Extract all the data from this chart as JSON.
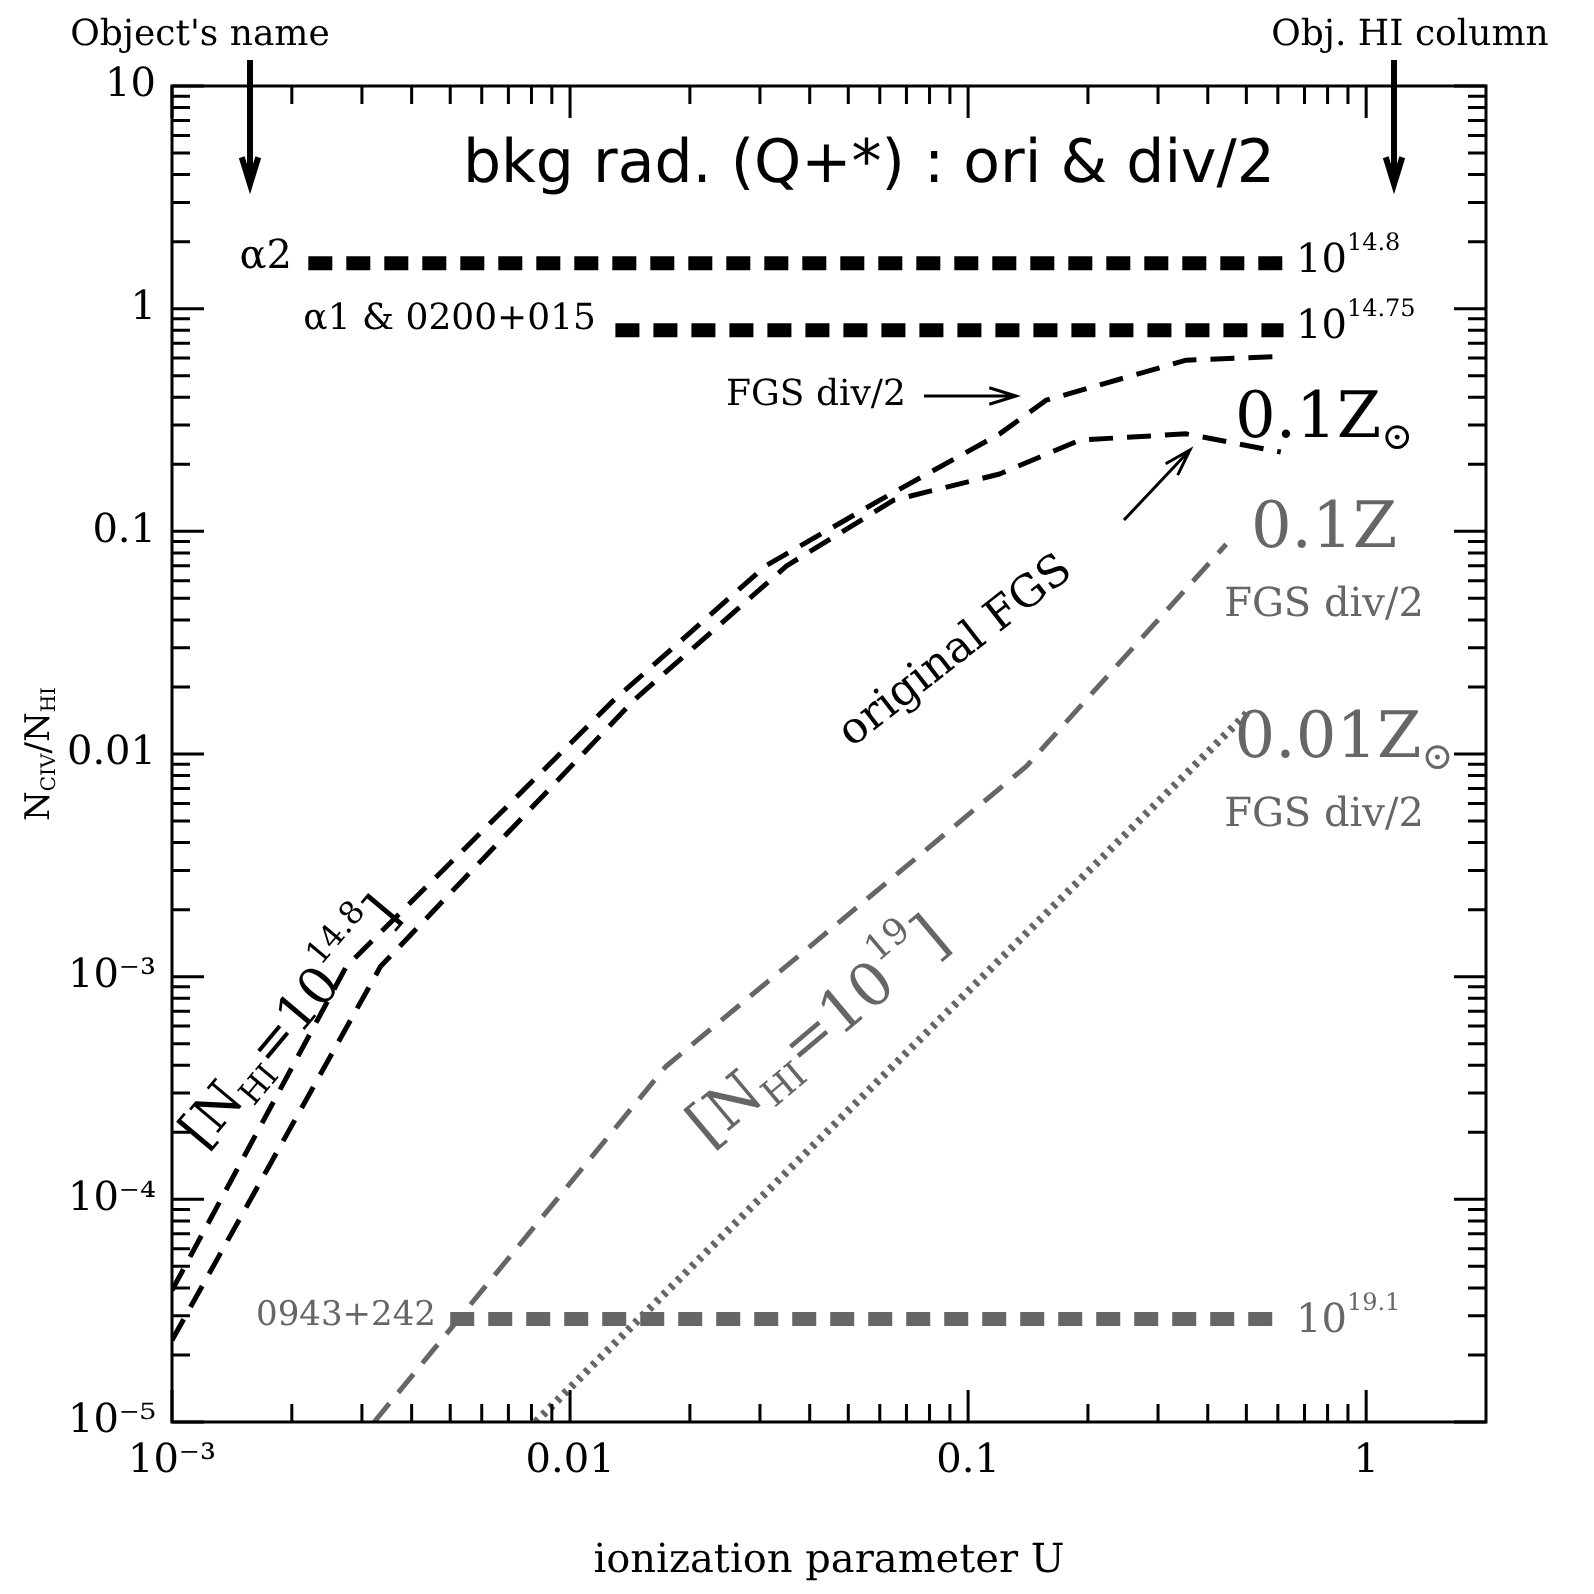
{
  "chart_data": {
    "type": "line",
    "title": "bkg rad. (Q+*) : ori & div/2",
    "xlabel": "ionization parameter U",
    "ylabel": "N$_{CIV}$/N$_{HI}$",
    "log": "xy",
    "grid": false,
    "legend": false,
    "marker": "none",
    "xlim": [
      0.001,
      2
    ],
    "ylim": [
      1e-05,
      10
    ],
    "xticks": [
      {
        "value": 0.001,
        "label": "10⁻³"
      },
      {
        "value": 0.002,
        "label": null
      },
      {
        "value": 0.003,
        "label": null
      },
      {
        "value": 0.004,
        "label": null
      },
      {
        "value": 0.005,
        "label": null
      },
      {
        "value": 0.006,
        "label": null
      },
      {
        "value": 0.007,
        "label": null
      },
      {
        "value": 0.008,
        "label": null
      },
      {
        "value": 0.009,
        "label": null
      },
      0.01,
      {
        "value": 0.02,
        "label": null
      },
      {
        "value": 0.03,
        "label": null
      },
      {
        "value": 0.04,
        "label": null
      },
      {
        "value": 0.05,
        "label": null
      },
      {
        "value": 0.06,
        "label": null
      },
      {
        "value": 0.07,
        "label": null
      },
      {
        "value": 0.08,
        "label": null
      },
      {
        "value": 0.09,
        "label": null
      },
      0.1,
      {
        "value": 0.2,
        "label": null
      },
      {
        "value": 0.3,
        "label": null
      },
      {
        "value": 0.4,
        "label": null
      },
      {
        "value": 0.5,
        "label": null
      },
      {
        "value": 0.6,
        "label": null
      },
      {
        "value": 0.7,
        "label": null
      },
      {
        "value": 0.8,
        "label": null
      },
      {
        "value": 0.9,
        "label": null
      },
      1
    ],
    "yticks": [
      {
        "value": 1e-05,
        "label": "10⁻⁵"
      },
      {
        "value": 2e-05,
        "label": null
      },
      {
        "value": 3e-05,
        "label": null
      },
      {
        "value": 4e-05,
        "label": null
      },
      {
        "value": 5e-05,
        "label": null
      },
      {
        "value": 6e-05,
        "label": null
      },
      {
        "value": 7e-05,
        "label": null
      },
      {
        "value": 8e-05,
        "label": null
      },
      {
        "value": 9e-05,
        "label": null
      },
      {
        "value": 0.0001,
        "label": "10⁻⁴"
      },
      {
        "value": 0.0002,
        "label": null
      },
      {
        "value": 0.0003,
        "label": null
      },
      {
        "value": 0.0004,
        "label": null
      },
      {
        "value": 0.0005,
        "label": null
      },
      {
        "value": 0.0006,
        "label": null
      },
      {
        "value": 0.0007,
        "label": null
      },
      {
        "value": 0.0008,
        "label": null
      },
      {
        "value": 0.0009,
        "label": null
      },
      {
        "value": 0.001,
        "label": "10⁻³"
      },
      {
        "value": 0.002,
        "label": null
      },
      {
        "value": 0.003,
        "label": null
      },
      {
        "value": 0.004,
        "label": null
      },
      {
        "value": 0.005,
        "label": null
      },
      {
        "value": 0.006,
        "label": null
      },
      {
        "value": 0.007,
        "label": null
      },
      {
        "value": 0.008,
        "label": null
      },
      {
        "value": 0.009,
        "label": null
      },
      0.01,
      {
        "value": 0.02,
        "label": null
      },
      {
        "value": 0.03,
        "label": null
      },
      {
        "value": 0.04,
        "label": null
      },
      {
        "value": 0.05,
        "label": null
      },
      {
        "value": 0.06,
        "label": null
      },
      {
        "value": 0.07,
        "label": null
      },
      {
        "value": 0.08,
        "label": null
      },
      {
        "value": 0.09,
        "label": null
      },
      0.1,
      {
        "value": 0.2,
        "label": null
      },
      {
        "value": 0.3,
        "label": null
      },
      {
        "value": 0.4,
        "label": null
      },
      {
        "value": 0.5,
        "label": null
      },
      {
        "value": 0.6,
        "label": null
      },
      {
        "value": 0.7,
        "label": null
      },
      {
        "value": 0.8,
        "label": null
      },
      {
        "value": 0.9,
        "label": null
      },
      1,
      {
        "value": 2,
        "label": null
      },
      {
        "value": 3,
        "label": null
      },
      {
        "value": 4,
        "label": null
      },
      {
        "value": 5,
        "label": null
      },
      {
        "value": 6,
        "label": null
      },
      {
        "value": 7,
        "label": null
      },
      {
        "value": 8,
        "label": null
      },
      {
        "value": 9,
        "label": null
      },
      10
    ],
    "series": [
      {
        "color": "#000000",
        "line_style": "dashed",
        "x": [
          0.0022,
          0.62
        ],
        "values": [
          1.6,
          1.6
        ]
      },
      {
        "color": "#000000",
        "line_style": "dashed",
        "x": [
          0.013,
          0.62
        ],
        "values": [
          0.8,
          0.8
        ]
      },
      {
        "color": "#666666",
        "line_style": "dashed",
        "x": [
          0.005,
          0.62
        ],
        "values": [
          2.9e-05,
          2.9e-05
        ]
      },
      {
        "color": "#000000",
        "line_style": "dashed",
        "x": [
          0.001,
          0.00274,
          0.0129,
          0.031,
          0.06,
          0.12,
          0.157,
          0.353,
          0.61
        ],
        "values": [
          3.9e-05,
          0.00111,
          0.0175,
          0.07,
          0.138,
          0.274,
          0.388,
          0.587,
          0.61
        ]
      },
      {
        "color": "#000000",
        "line_style": "dashed",
        "x": [
          0.001,
          0.00334,
          0.0145,
          0.035,
          0.065,
          0.12,
          0.191,
          0.353,
          0.61
        ],
        "values": [
          2.33e-05,
          0.00111,
          0.0175,
          0.07,
          0.138,
          0.181,
          0.257,
          0.274,
          0.227
        ]
      },
      {
        "color": "#666666",
        "line_style": "dashed",
        "x": [
          0.00322,
          0.0174,
          0.14,
          0.445
        ],
        "values": [
          1e-05,
          0.000395,
          0.0088,
          0.0875
        ]
      },
      {
        "color": "#666666",
        "line_style": "dotted",
        "x": [
          0.0082,
          0.12,
          0.51
        ],
        "values": [
          1e-05,
          0.00119,
          0.0157
        ]
      }
    ],
    "annotations": [
      "Object's name",
      "Obj. HI column",
      "α2",
      "α1 & 0200+015",
      "0943+242",
      "10$^{14.8}$",
      "10$^{14.75}$",
      "10$^{19.1}$",
      "FGS div/2",
      "0.1Z$_{⊙}$",
      "original FGS",
      "0.1Z",
      "FGS div/2",
      "0.01Z$_{⊙}$",
      "FGS div/2",
      "[N$_{HI}$=10$^{14.8}$]",
      "[N$_{HI}$=10$^{19}$]"
    ]
  }
}
